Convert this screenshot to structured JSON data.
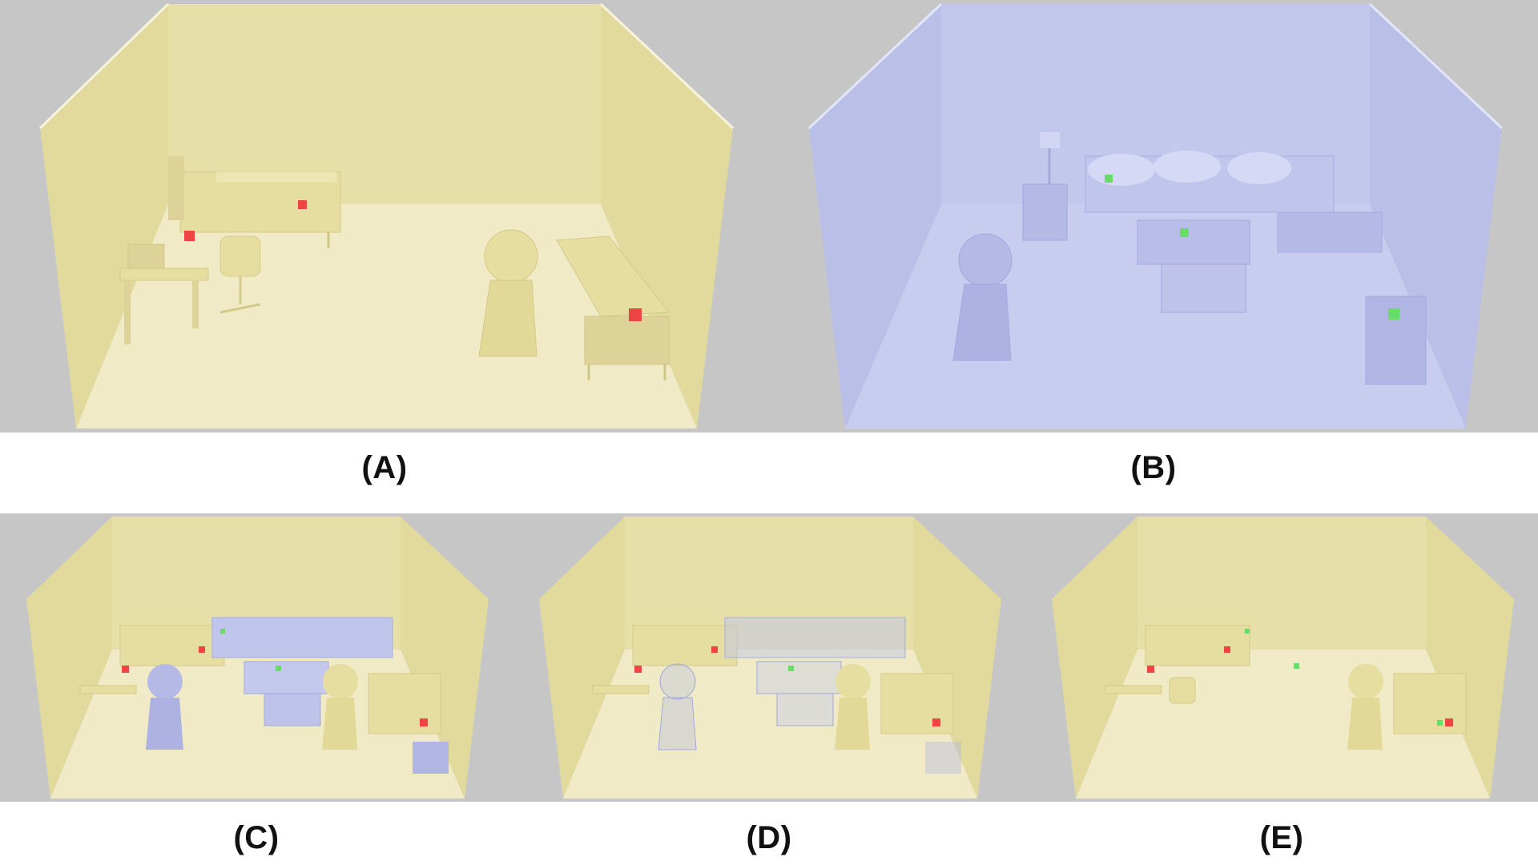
{
  "panels": [
    {
      "id": "A",
      "label": "(A)",
      "scene": "yellow-room-bedroom-office"
    },
    {
      "id": "B",
      "label": "(B)",
      "scene": "blue-room-living-room"
    },
    {
      "id": "C",
      "label": "(C)",
      "scene": "combined-room-opaque"
    },
    {
      "id": "D",
      "label": "(D)",
      "scene": "combined-room-transparent-overlay"
    },
    {
      "id": "E",
      "label": "(E)",
      "scene": "yellow-room-with-markers"
    }
  ],
  "colors": {
    "background": "#c6c6c6",
    "yellow_wall": "#e8e2ac",
    "yellow_floor": "#f0ebc3",
    "yellow_furniture": "#e6dda0",
    "blue_wall": "#c2c7ec",
    "blue_floor": "#c8ccef",
    "blue_furniture": "#b4b9e6",
    "red_marker": "#ee4444",
    "green_marker": "#66dd66"
  }
}
